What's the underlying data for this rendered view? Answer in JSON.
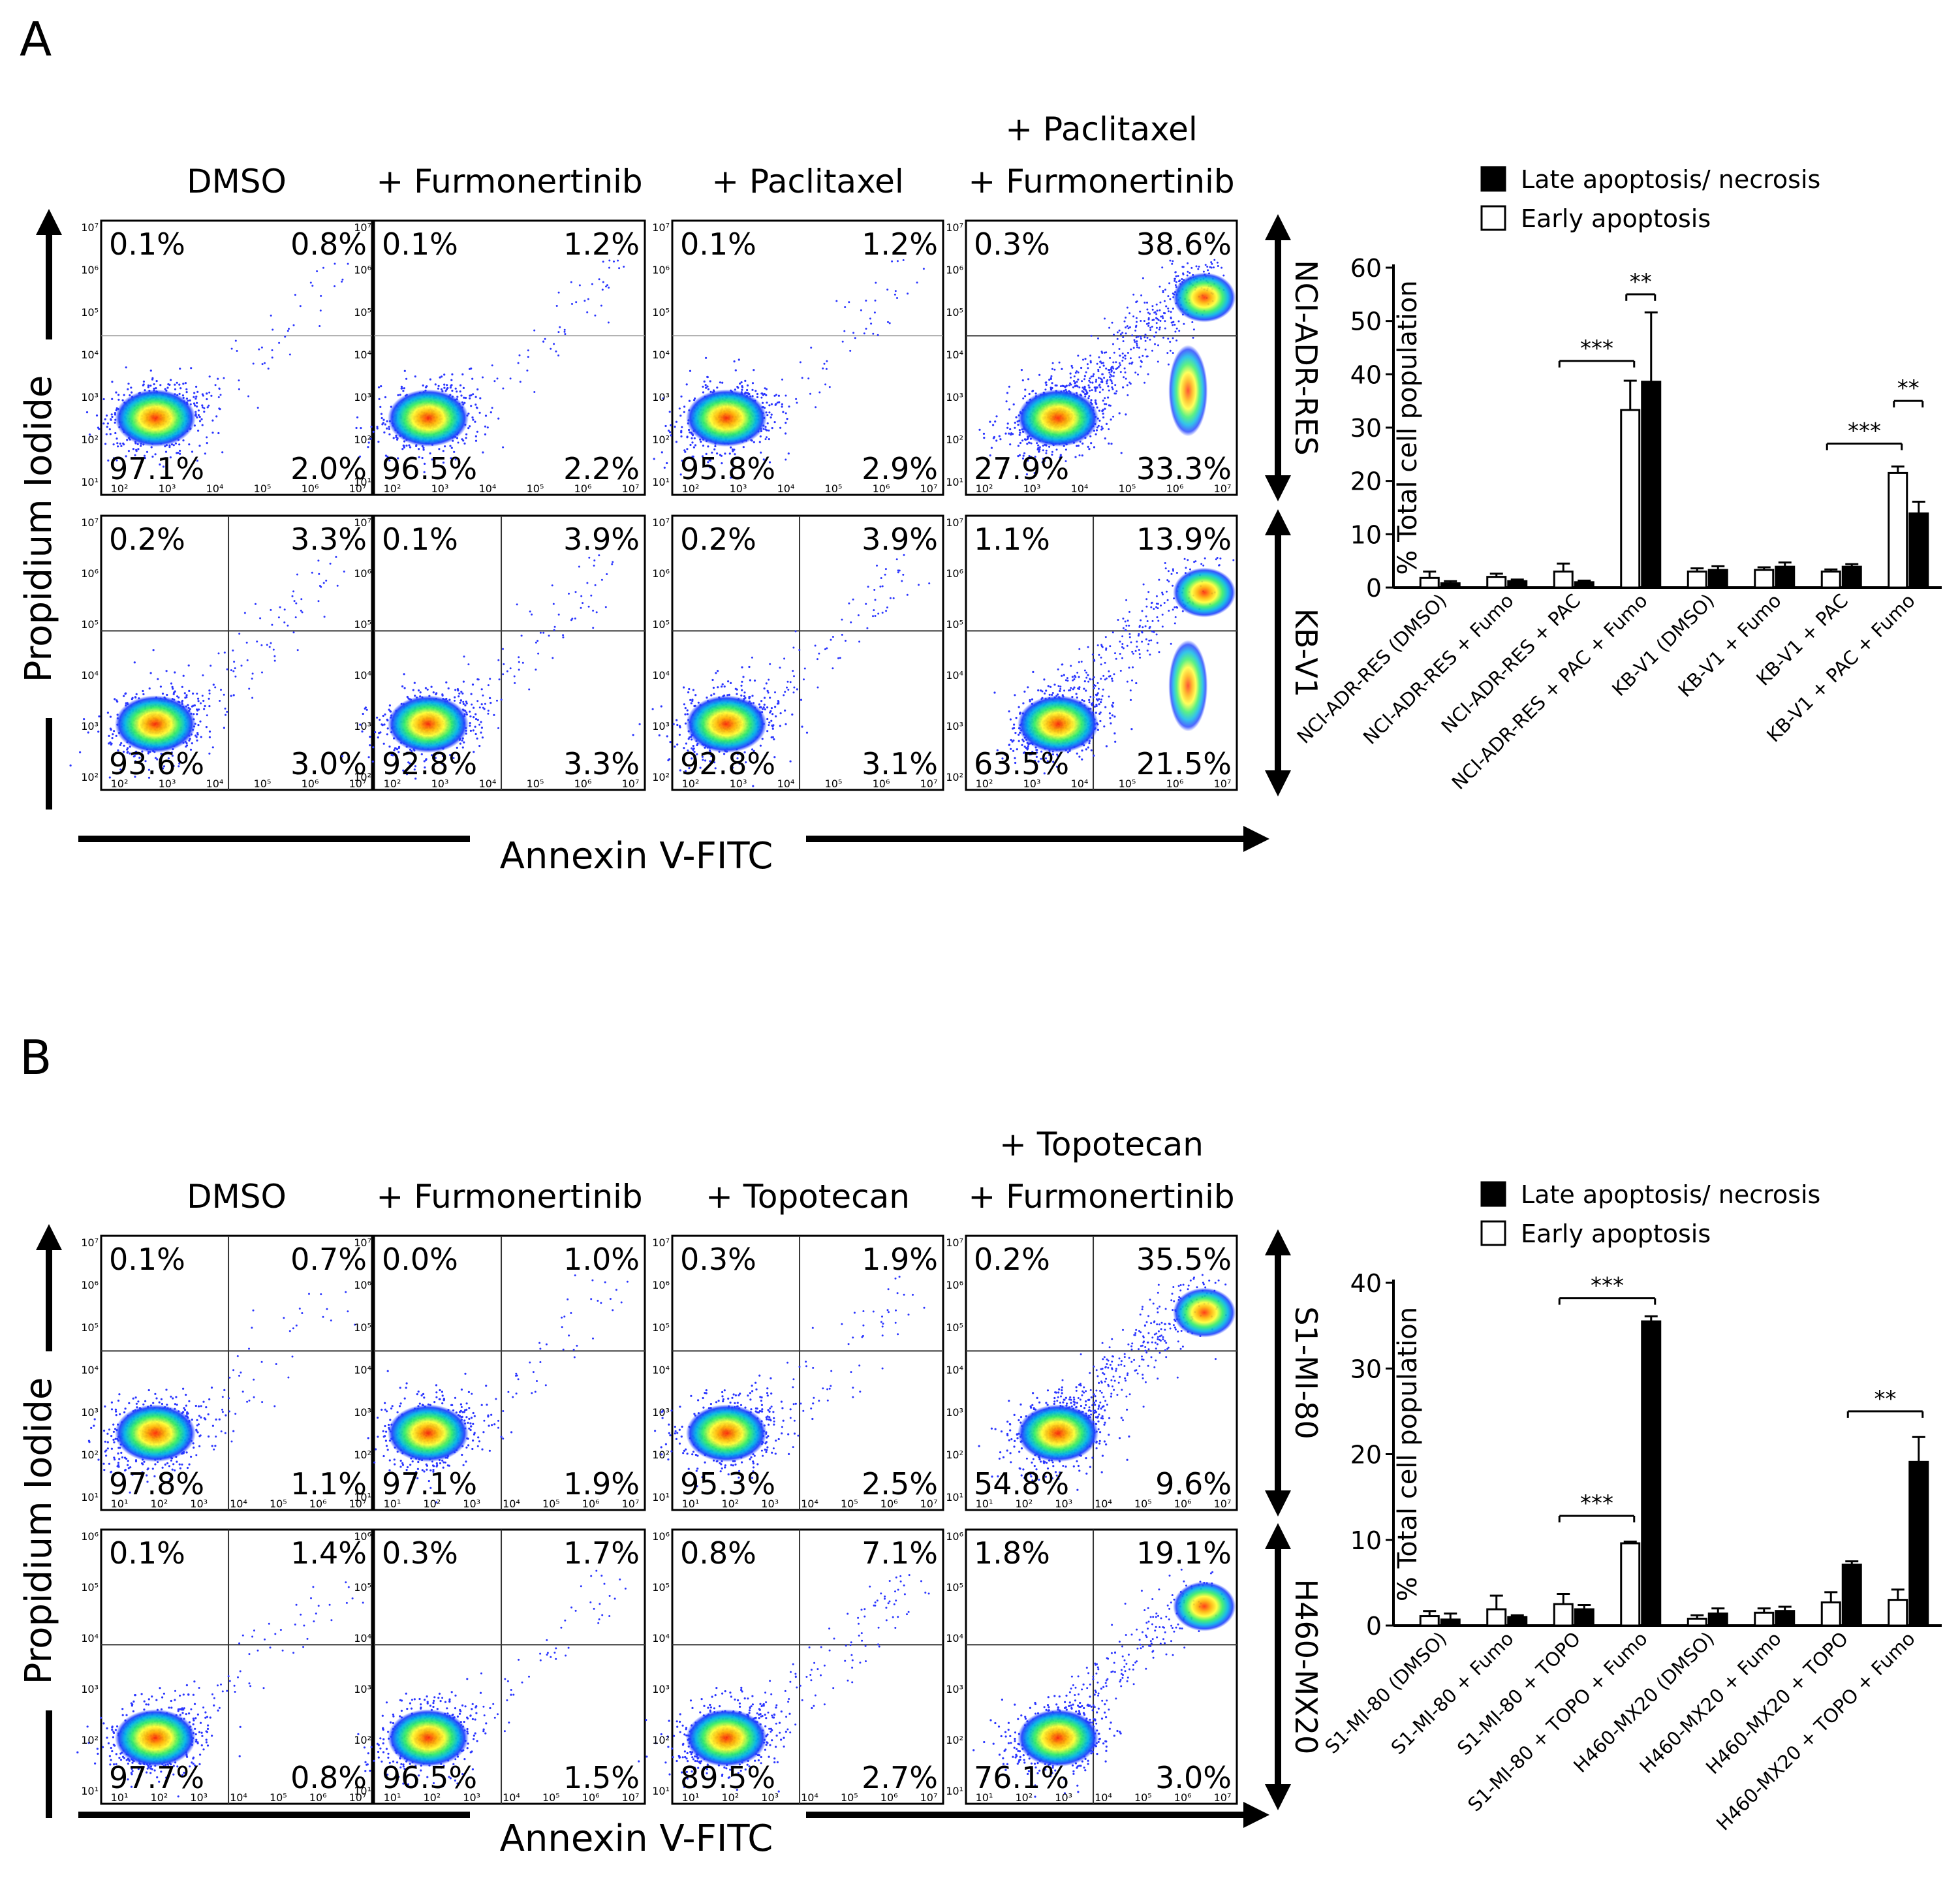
{
  "panels": [
    {
      "letter": "A",
      "columns": [
        {
          "lines": [
            "DMSO"
          ]
        },
        {
          "lines": [
            "+ Furmonertinib"
          ]
        },
        {
          "lines": [
            "+ Paclitaxel"
          ]
        },
        {
          "lines": [
            "+ Paclitaxel",
            "+ Furmonertinib"
          ]
        }
      ],
      "y_label": "Propidium Iodide",
      "x_label": "Annexin V-FITC",
      "rows": [
        {
          "cell_line": "NCI-ADR-RES",
          "y_ticks": [
            "10¹",
            "10²",
            "10³",
            "10⁴",
            "10⁵",
            "10⁶",
            "10⁷"
          ],
          "quadrants": [
            {
              "ul": "0.1%",
              "ur": "0.8%",
              "ll": "97.1%",
              "lr": "2.0%"
            },
            {
              "ul": "0.1%",
              "ur": "1.2%",
              "ll": "96.5%",
              "lr": "2.2%"
            },
            {
              "ul": "0.1%",
              "ur": "1.2%",
              "ll": "95.8%",
              "lr": "2.9%"
            },
            {
              "ul": "0.3%",
              "ur": "38.6%",
              "ll": "27.9%",
              "lr": "33.3%"
            }
          ]
        },
        {
          "cell_line": "KB-V1",
          "y_ticks": [
            "10²",
            "10³",
            "10⁴",
            "10⁵",
            "10⁶",
            "10⁷"
          ],
          "quadrants": [
            {
              "ul": "0.2%",
              "ur": "3.3%",
              "ll": "93.6%",
              "lr": "3.0%"
            },
            {
              "ul": "0.1%",
              "ur": "3.9%",
              "ll": "92.8%",
              "lr": "3.3%"
            },
            {
              "ul": "0.2%",
              "ur": "3.9%",
              "ll": "92.8%",
              "lr": "3.1%"
            },
            {
              "ul": "1.1%",
              "ur": "13.9%",
              "ll": "63.5%",
              "lr": "21.5%"
            }
          ]
        }
      ],
      "x_ticks": [
        "10²",
        "10³",
        "10⁴",
        "10⁵",
        "10⁶",
        "10⁷"
      ]
    },
    {
      "letter": "B",
      "columns": [
        {
          "lines": [
            "DMSO"
          ]
        },
        {
          "lines": [
            "+ Furmonertinib"
          ]
        },
        {
          "lines": [
            "+ Topotecan"
          ]
        },
        {
          "lines": [
            "+ Topotecan",
            "+ Furmonertinib"
          ]
        }
      ],
      "y_label": "Propidium Iodide",
      "x_label": "Annexin V-FITC",
      "rows": [
        {
          "cell_line": "S1-MI-80",
          "y_ticks": [
            "10¹",
            "10²",
            "10³",
            "10⁴",
            "10⁵",
            "10⁶",
            "10⁷"
          ],
          "quadrants": [
            {
              "ul": "0.1%",
              "ur": "0.7%",
              "ll": "97.8%",
              "lr": "1.1%"
            },
            {
              "ul": "0.0%",
              "ur": "1.0%",
              "ll": "97.1%",
              "lr": "1.9%"
            },
            {
              "ul": "0.3%",
              "ur": "1.9%",
              "ll": "95.3%",
              "lr": "2.5%"
            },
            {
              "ul": "0.2%",
              "ur": "35.5%",
              "ll": "54.8%",
              "lr": "9.6%"
            }
          ]
        },
        {
          "cell_line": "H460-MX20",
          "y_ticks": [
            "10¹",
            "10²",
            "10³",
            "10⁴",
            "10⁵",
            "10⁶"
          ],
          "quadrants": [
            {
              "ul": "0.1%",
              "ur": "1.4%",
              "ll": "97.7%",
              "lr": "0.8%"
            },
            {
              "ul": "0.3%",
              "ur": "1.7%",
              "ll": "96.5%",
              "lr": "1.5%"
            },
            {
              "ul": "0.8%",
              "ur": "7.1%",
              "ll": "89.5%",
              "lr": "2.7%"
            },
            {
              "ul": "1.8%",
              "ur": "19.1%",
              "ll": "76.1%",
              "lr": "3.0%"
            }
          ]
        }
      ],
      "x_ticks": [
        "10¹",
        "10²",
        "10³",
        "10⁴",
        "10⁵",
        "10⁶",
        "10⁷"
      ]
    }
  ],
  "chart_data": [
    {
      "type": "bar",
      "panel": "A",
      "ylabel": "% Total cell population",
      "ylim": [
        0,
        60
      ],
      "yticks": [
        0,
        10,
        20,
        30,
        40,
        50,
        60
      ],
      "legend": [
        "Late apoptosis/ necrosis",
        "Early apoptosis"
      ],
      "legend_placement": "top",
      "categories": [
        "NCI-ADR-RES (DMSO)",
        "NCI-ADR-RES + Fumo",
        "NCI-ADR-RES + PAC",
        "NCI-ADR-RES + PAC + Fumo",
        "KB-V1 (DMSO)",
        "KB-V1 + Fumo",
        "KB-V1 + PAC",
        "KB-V1 + PAC + Fumo"
      ],
      "series": [
        {
          "name": "Early apoptosis",
          "fill": "#ffffff",
          "values": [
            1.8,
            2.0,
            3.0,
            33.3,
            3.0,
            3.3,
            3.0,
            21.5
          ],
          "errors": [
            1.2,
            0.6,
            1.5,
            5.5,
            0.6,
            0.5,
            0.4,
            1.2
          ]
        },
        {
          "name": "Late apoptosis/ necrosis",
          "fill": "#000000",
          "values": [
            0.8,
            1.2,
            1.0,
            38.6,
            3.3,
            3.9,
            3.9,
            13.9
          ],
          "errors": [
            0.4,
            0.3,
            0.3,
            13.0,
            0.7,
            0.8,
            0.5,
            2.2
          ]
        }
      ],
      "significance": [
        {
          "from": 2,
          "series_from": 0,
          "to": 3,
          "series_to": 0,
          "y": 42.5,
          "label": "***"
        },
        {
          "from": 3,
          "series_from": 0,
          "to": 3,
          "series_to": 1,
          "y": 55,
          "label": "**"
        },
        {
          "from": 6,
          "series_from": 0,
          "to": 7,
          "series_to": 0,
          "y": 27,
          "label": "***"
        },
        {
          "from": 7,
          "series_from": 0,
          "to": 7,
          "series_to": 1,
          "y": 35,
          "label": "**"
        }
      ]
    },
    {
      "type": "bar",
      "panel": "B",
      "ylabel": "% Total cell population",
      "ylim": [
        0,
        40
      ],
      "yticks": [
        0,
        10,
        20,
        30,
        40
      ],
      "legend": [
        "Late apoptosis/ necrosis",
        "Early apoptosis"
      ],
      "legend_placement": "top",
      "categories": [
        "S1-MI-80 (DMSO)",
        "S1-MI-80 + Fumo",
        "S1-MI-80 + TOPO",
        "S1-MI-80 + TOPO + Fumo",
        "H460-MX20 (DMSO)",
        "H460-MX20 + Fumo",
        "H460-MX20 + TOPO",
        "H460-MX20 + TOPO + Fumo"
      ],
      "series": [
        {
          "name": "Early apoptosis",
          "fill": "#ffffff",
          "values": [
            1.1,
            1.9,
            2.5,
            9.6,
            0.8,
            1.5,
            2.7,
            3.0
          ],
          "errors": [
            0.6,
            1.6,
            1.2,
            0.2,
            0.4,
            0.5,
            1.2,
            1.2
          ]
        },
        {
          "name": "Late apoptosis/ necrosis",
          "fill": "#000000",
          "values": [
            0.7,
            1.0,
            1.9,
            35.5,
            1.4,
            1.7,
            7.1,
            19.1
          ],
          "errors": [
            0.7,
            0.2,
            0.5,
            0.6,
            0.6,
            0.5,
            0.4,
            2.9
          ]
        }
      ],
      "significance": [
        {
          "from": 2,
          "series_from": 0,
          "to": 3,
          "series_to": 1,
          "y": 38.2,
          "label": "***"
        },
        {
          "from": 2,
          "series_from": 0,
          "to": 3,
          "series_to": 0,
          "y": 12.8,
          "label": "***"
        },
        {
          "from": 6,
          "series_from": 1,
          "to": 7,
          "series_to": 1,
          "y": 25,
          "label": "**"
        }
      ]
    }
  ]
}
